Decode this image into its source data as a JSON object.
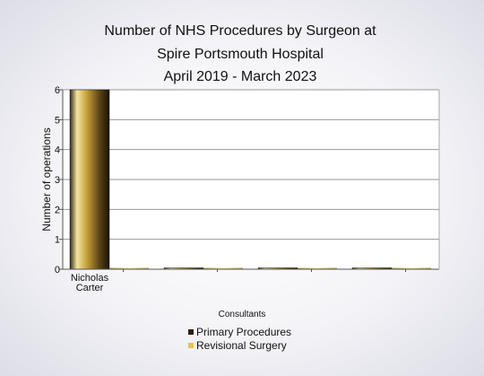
{
  "chart_data": {
    "type": "bar",
    "title_lines": [
      "Number of NHS Procedures by Surgeon at",
      "Spire Portsmouth Hospital",
      "April 2019 - March 2023"
    ],
    "xlabel": "Consultants",
    "ylabel": "Number of operations",
    "ylim": [
      0,
      6
    ],
    "yticks": [
      0,
      1,
      2,
      3,
      4,
      5,
      6
    ],
    "grid": true,
    "legend_placement": "bottom-center",
    "categories": [
      [
        "Nicholas",
        "Carter"
      ],
      [],
      [],
      []
    ],
    "series": [
      {
        "name": "Primary Procedures",
        "values": [
          6,
          0,
          0,
          0
        ],
        "color": "#2a2010"
      },
      {
        "name": "Revisional Surgery",
        "values": [
          0,
          0,
          0,
          0
        ],
        "color": "#e2c54a"
      }
    ]
  }
}
